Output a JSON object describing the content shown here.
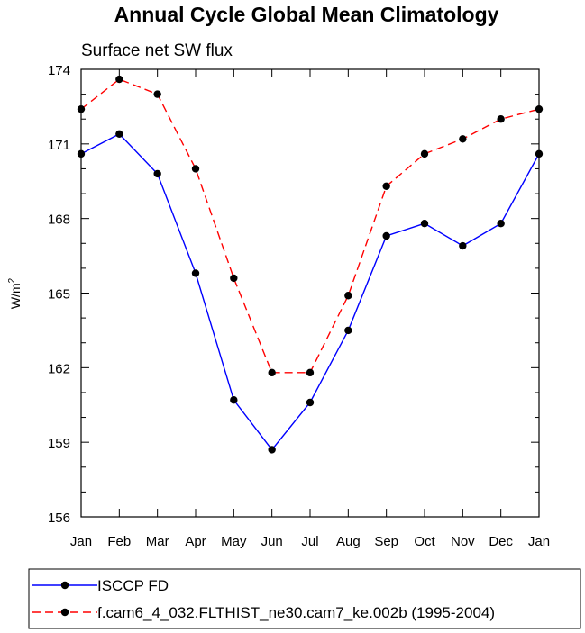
{
  "chart_data": {
    "type": "line",
    "title": "Annual Cycle Global Mean Climatology",
    "subtitle": "Surface net SW flux",
    "ylabel": "W/m",
    "ylabel_sup": "2",
    "xlabel": "",
    "ylim": [
      156,
      174
    ],
    "yticks": [
      156,
      159,
      162,
      165,
      168,
      171,
      174
    ],
    "categories": [
      "Jan",
      "Feb",
      "Mar",
      "Apr",
      "May",
      "Jun",
      "Jul",
      "Aug",
      "Sep",
      "Oct",
      "Nov",
      "Dec",
      "Jan"
    ],
    "grid": false,
    "legend_placement": "bottom",
    "series": [
      {
        "name": "ISCCP FD",
        "color": "#0000ff",
        "dash": "solid",
        "marker": "dot",
        "values": [
          170.6,
          171.4,
          169.8,
          165.8,
          160.7,
          158.7,
          160.6,
          163.5,
          167.3,
          167.8,
          166.9,
          167.8,
          170.6
        ]
      },
      {
        "name": "f.cam6_4_032.FLTHIST_ne30.cam7_ke.002b (1995-2004)",
        "color": "#ff0000",
        "dash": "dashed",
        "marker": "dot",
        "values": [
          172.4,
          173.6,
          173.0,
          170.0,
          165.6,
          161.8,
          161.8,
          164.9,
          169.3,
          170.6,
          171.2,
          172.0,
          172.4
        ]
      }
    ]
  }
}
